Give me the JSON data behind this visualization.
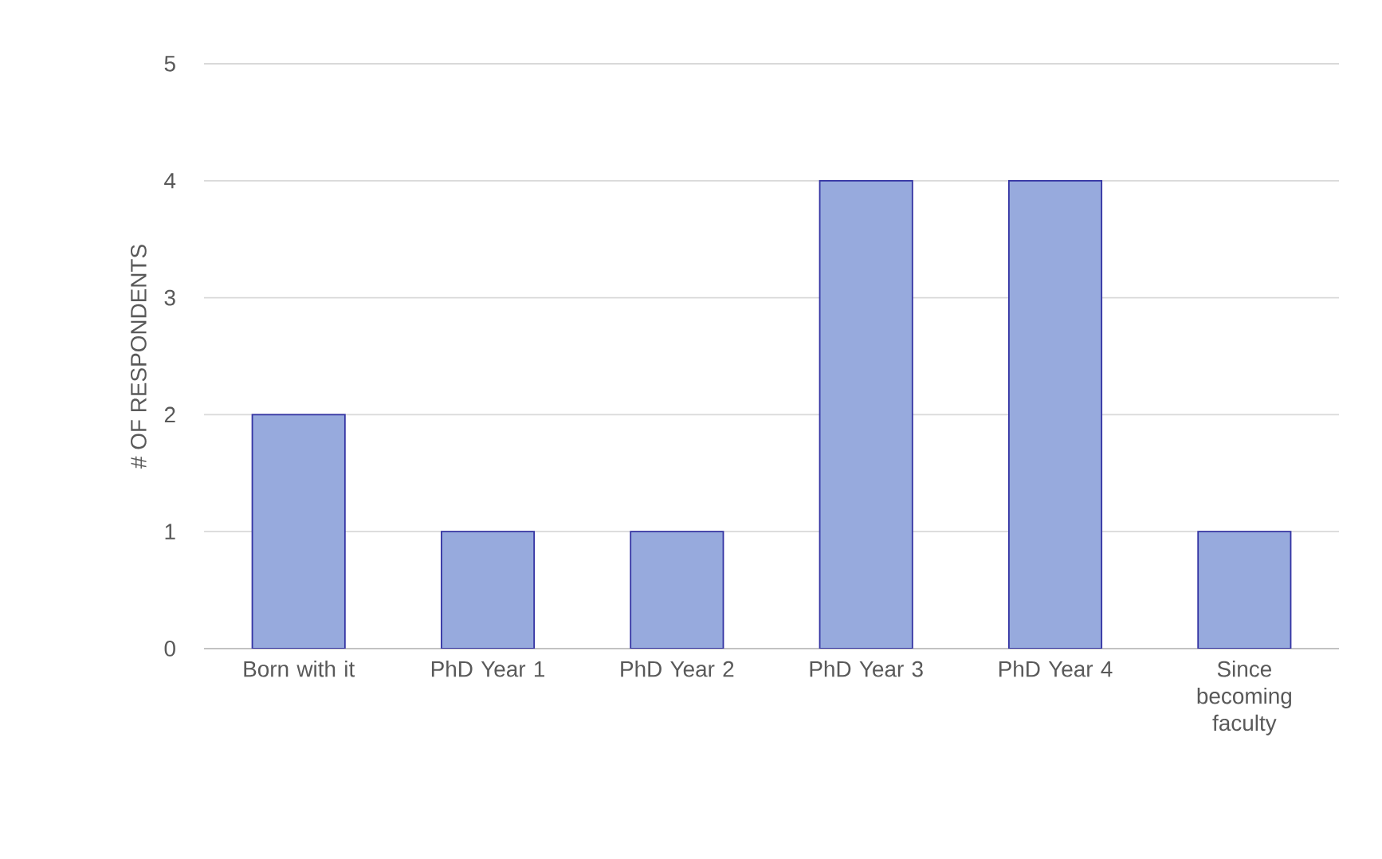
{
  "chart_data": {
    "type": "bar",
    "ylabel": "# OF RESPONDENTS",
    "categories": [
      "Born with it",
      "PhD Year 1",
      "PhD Year 2",
      "PhD Year 3",
      "PhD Year 4",
      "Since becoming faculty"
    ],
    "values": [
      2,
      1,
      1,
      4,
      4,
      1
    ],
    "color": "#97aadd",
    "ylim": [
      0,
      5
    ],
    "yticks": [
      0,
      1,
      2,
      3,
      4,
      5
    ],
    "grid": "y"
  }
}
